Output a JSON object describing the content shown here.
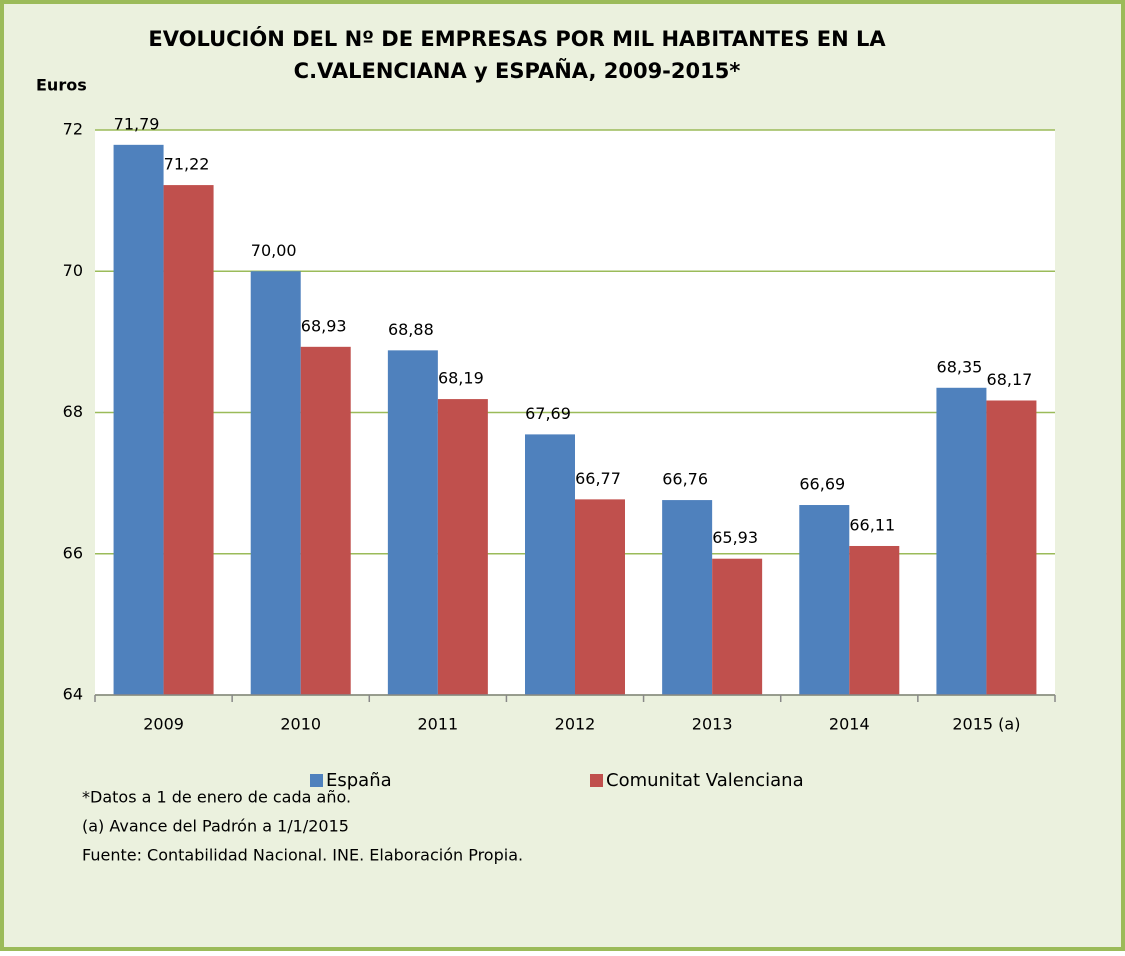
{
  "chart_data": {
    "type": "bar",
    "title": [
      "EVOLUCIÓN DEL Nº DE EMPRESAS POR MIL HABITANTES EN LA",
      "C.VALENCIANA  y  ESPAÑA, 2009-2015*"
    ],
    "y_label": "Euros",
    "categories": [
      "2009",
      "2010",
      "2011",
      "2012",
      "2013",
      "2014",
      "2015 (a)"
    ],
    "series": [
      {
        "name": "España",
        "color": "#4f81bd",
        "values": [
          71.79,
          70.0,
          68.88,
          67.69,
          66.76,
          66.69,
          68.35
        ],
        "value_labels": [
          "71,79",
          "70,00",
          "68,88",
          "67,69",
          "66,76",
          "66,69",
          "68,35"
        ]
      },
      {
        "name": "Comunitat Valenciana",
        "color": "#c0504d",
        "values": [
          71.22,
          68.93,
          68.19,
          66.77,
          65.93,
          66.11,
          68.17
        ],
        "value_labels": [
          "71,22",
          "68,93",
          "68,19",
          "66,77",
          "65,93",
          "66,11",
          "68,17"
        ]
      }
    ],
    "ylim": [
      64,
      72
    ],
    "yticks": [
      64,
      66,
      68,
      70,
      72
    ],
    "grid": true,
    "grid_color": "#9bbb59",
    "notes": [
      "*Datos a 1 de enero de cada año.",
      "(a) Avance del Padrón a 1/1/2015",
      "Fuente:  Contabilidad Nacional. INE. Elaboración Propia."
    ]
  }
}
